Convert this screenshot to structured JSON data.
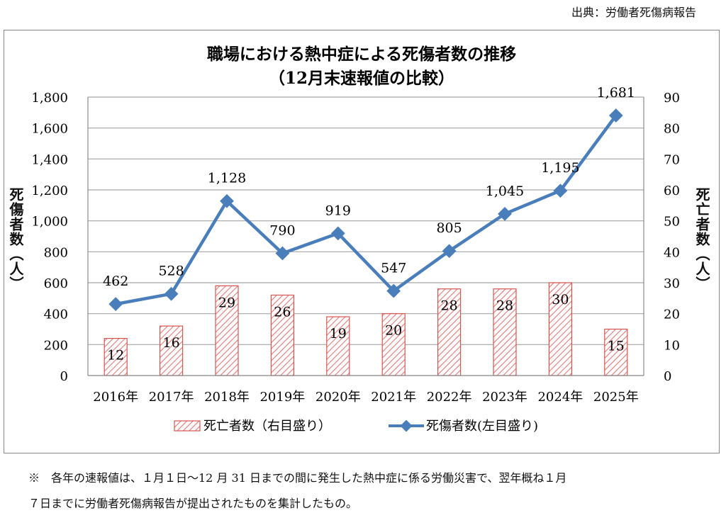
{
  "source": "出典：労働者死傷病報告",
  "note": {
    "line1": "※　各年の速報値は、１月１日～12 月 31 日までの間に発生した熱中症に係る労働災害で、翌年概ね１月",
    "line2": "７日までに労働者死傷病報告が提出されたものを集計したもの。"
  },
  "chart_data": {
    "type": "bar+line",
    "title": "職場における熱中症による死傷者数の推移",
    "subtitle": "（12月末速報値の比較）",
    "categories": [
      "2016年",
      "2017年",
      "2018年",
      "2019年",
      "2020年",
      "2021年",
      "2022年",
      "2023年",
      "2024年",
      "2025年"
    ],
    "ylabel_left": "死傷者数（人）",
    "ylabel_right": "死亡者数（人）",
    "ylim_left": [
      0,
      1800
    ],
    "yticks_left": [
      "0",
      "200",
      "400",
      "600",
      "800",
      "1,000",
      "1,200",
      "1,400",
      "1,600",
      "1,800"
    ],
    "ylim_right": [
      0,
      90
    ],
    "yticks_right": [
      "0",
      "10",
      "20",
      "30",
      "40",
      "50",
      "60",
      "70",
      "80",
      "90"
    ],
    "grid": true,
    "legend_placement": "bottom",
    "series": [
      {
        "name": "死亡者数（右目盛り）",
        "type": "bar",
        "axis": "right",
        "color": "#d9534f",
        "values": [
          12,
          16,
          29,
          26,
          19,
          20,
          28,
          28,
          30,
          15
        ],
        "labels": [
          "12",
          "16",
          "29",
          "26",
          "19",
          "20",
          "28",
          "28",
          "30",
          "15"
        ]
      },
      {
        "name": "死傷者数(左目盛り)",
        "type": "line",
        "axis": "left",
        "color": "#4a7ebb",
        "values": [
          462,
          528,
          1128,
          790,
          919,
          547,
          805,
          1045,
          1195,
          1681
        ],
        "labels": [
          "462",
          "528",
          "1,128",
          "790",
          "919",
          "547",
          "805",
          "1,045",
          "1,195",
          "1,681"
        ]
      }
    ]
  }
}
